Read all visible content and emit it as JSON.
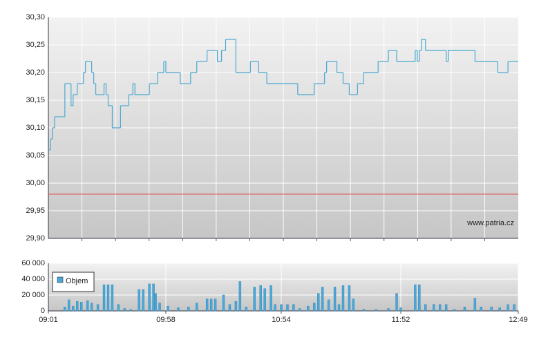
{
  "chart_data": [
    {
      "type": "line",
      "step": true,
      "color": "#4aa8d0",
      "grid": true,
      "annotation": "www.patria.cz",
      "reference_line": {
        "value": 29.98,
        "color": "#e05050"
      },
      "xlim": [
        "09:01",
        "12:49"
      ],
      "x_grid_divisions": 14,
      "x": [
        "09:01",
        "09:02",
        "09:03",
        "09:04",
        "09:09",
        "09:12",
        "09:13",
        "09:15",
        "09:18",
        "09:19",
        "09:22",
        "09:23",
        "09:24",
        "09:28",
        "09:29",
        "09:30",
        "09:32",
        "09:36",
        "09:40",
        "09:42",
        "09:43",
        "09:50",
        "09:54",
        "09:57",
        "09:58",
        "10:05",
        "10:10",
        "10:13",
        "10:18",
        "10:23",
        "10:25",
        "10:27",
        "10:32",
        "10:39",
        "10:43",
        "10:47",
        "11:02",
        "11:10",
        "11:15",
        "11:16",
        "11:21",
        "11:24",
        "11:27",
        "11:31",
        "11:34",
        "11:41",
        "11:46",
        "11:50",
        "11:59",
        "12:00",
        "12:01",
        "12:02",
        "12:04",
        "12:14",
        "12:15",
        "12:28",
        "12:39",
        "12:44",
        "12:49"
      ],
      "values": [
        30.06,
        30.08,
        30.1,
        30.12,
        30.18,
        30.14,
        30.16,
        30.18,
        30.2,
        30.22,
        30.2,
        30.18,
        30.16,
        30.18,
        30.16,
        30.14,
        30.1,
        30.14,
        30.16,
        30.18,
        30.16,
        30.18,
        30.2,
        30.22,
        30.2,
        30.18,
        30.2,
        30.22,
        30.24,
        30.22,
        30.24,
        30.26,
        30.2,
        30.22,
        30.2,
        30.18,
        30.16,
        30.18,
        30.2,
        30.22,
        30.2,
        30.18,
        30.16,
        30.18,
        30.2,
        30.22,
        30.24,
        30.22,
        30.24,
        30.22,
        30.24,
        30.26,
        30.24,
        30.22,
        30.24,
        30.22,
        30.2,
        30.22,
        30.22
      ],
      "ylim": [
        29.9,
        30.3
      ],
      "yticks": [
        {
          "value": 29.9,
          "label": "29,90"
        },
        {
          "value": 29.95,
          "label": "29,95"
        },
        {
          "value": 30.0,
          "label": "30,00"
        },
        {
          "value": 30.05,
          "label": "30,05"
        },
        {
          "value": 30.1,
          "label": "30,10"
        },
        {
          "value": 30.15,
          "label": "30,15"
        },
        {
          "value": 30.2,
          "label": "30,20"
        },
        {
          "value": 30.25,
          "label": "30,25"
        },
        {
          "value": 30.3,
          "label": "30,30"
        }
      ]
    },
    {
      "type": "bar",
      "grid": true,
      "legend": "upper left",
      "xlim": [
        "09:01",
        "12:49"
      ],
      "xticks": [
        "09:01",
        "09:58",
        "10:54",
        "11:52",
        "12:49"
      ],
      "ylim": [
        0,
        60000
      ],
      "yticks": [
        0,
        {
          "value": 20000,
          "label": "20 000"
        },
        {
          "value": 40000,
          "label": "40 000"
        },
        {
          "value": 60000,
          "label": "60 000"
        }
      ],
      "series": [
        {
          "name": "Objem",
          "color": "#4aa8d8",
          "x": [
            "09:09",
            "09:11",
            "09:13",
            "09:15",
            "09:17",
            "09:20",
            "09:22",
            "09:25",
            "09:28",
            "09:30",
            "09:32",
            "09:35",
            "09:38",
            "09:41",
            "09:45",
            "09:47",
            "09:50",
            "09:52",
            "09:53",
            "09:55",
            "09:59",
            "10:04",
            "10:09",
            "10:13",
            "10:18",
            "10:20",
            "10:22",
            "10:26",
            "10:29",
            "10:32",
            "10:34",
            "10:37",
            "10:41",
            "10:44",
            "10:46",
            "10:49",
            "10:51",
            "10:54",
            "10:57",
            "11:00",
            "11:03",
            "11:07",
            "11:10",
            "11:12",
            "11:14",
            "11:17",
            "11:20",
            "11:22",
            "11:24",
            "11:27",
            "11:29",
            "11:34",
            "11:40",
            "11:46",
            "11:50",
            "11:52",
            "11:59",
            "12:01",
            "12:04",
            "12:08",
            "12:11",
            "12:14",
            "12:18",
            "12:23",
            "12:28",
            "12:31",
            "12:36",
            "12:40",
            "12:44",
            "12:47"
          ],
          "values": [
            5000,
            14000,
            6000,
            12000,
            11000,
            13000,
            10000,
            8000,
            33000,
            33000,
            33000,
            8000,
            3000,
            2000,
            27000,
            27000,
            34000,
            34000,
            22000,
            10000,
            6000,
            4000,
            5000,
            10000,
            15000,
            15000,
            15000,
            20000,
            8000,
            12000,
            37000,
            5000,
            30000,
            32000,
            28000,
            32000,
            8000,
            8000,
            8000,
            8000,
            3000,
            6000,
            10000,
            22000,
            30000,
            14000,
            30000,
            8000,
            32000,
            32000,
            15000,
            2000,
            2000,
            3000,
            22000,
            4000,
            33000,
            33000,
            8000,
            8000,
            8000,
            8000,
            2000,
            5000,
            16000,
            5000,
            5000,
            4000,
            8000,
            8000
          ]
        }
      ]
    }
  ]
}
